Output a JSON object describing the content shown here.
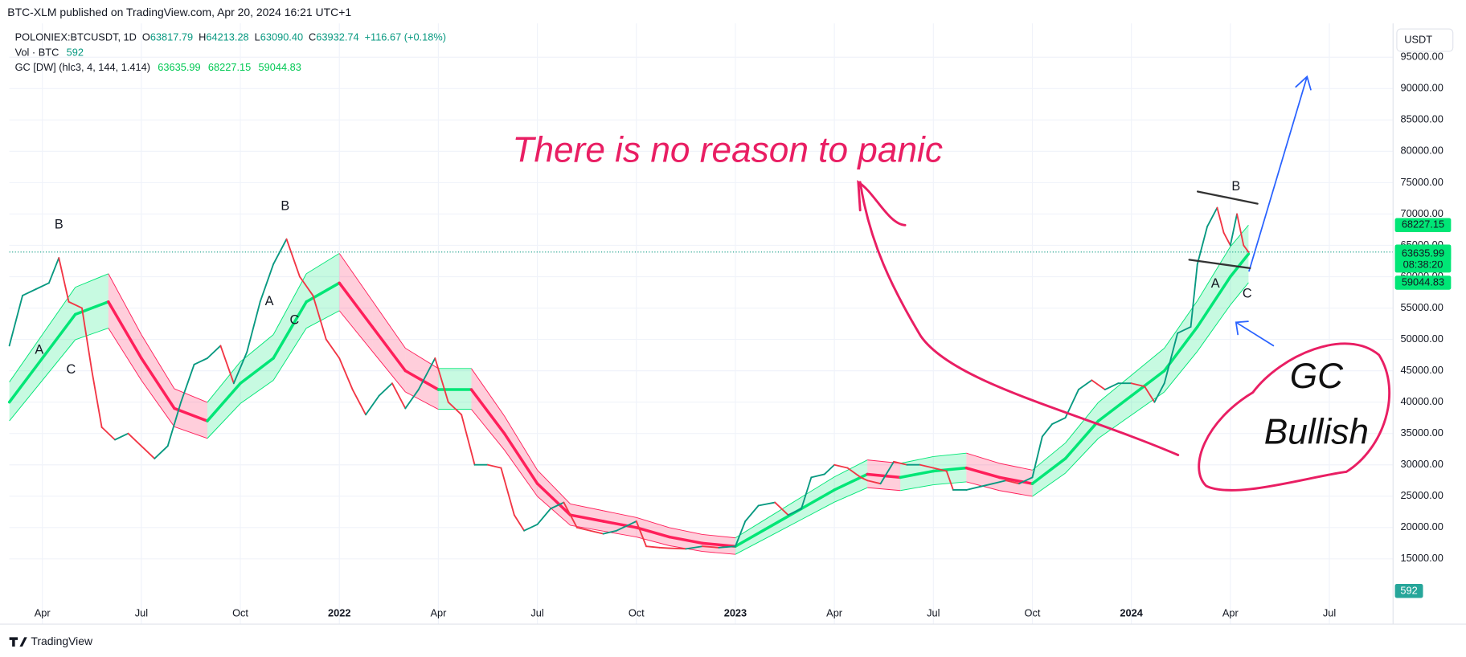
{
  "page": {
    "publisher": "BTC-XLM published on TradingView.com, Apr 20, 2024 16:21 UTC+1",
    "symbol": "POLONIEX:BTCUSDT, 1D",
    "ohlc": [
      {
        "key": "O",
        "value": "63817.79"
      },
      {
        "key": "H",
        "value": "64213.28"
      },
      {
        "key": "L",
        "value": "63090.40"
      },
      {
        "key": "C",
        "value": "63932.74"
      }
    ],
    "change": "+116.67 (+0.18%)",
    "vol_label": "Vol · BTC",
    "vol_value": 592,
    "gc_label": "GC [DW] (hlc3, 4, 144, 1.414)",
    "currency": "USDT",
    "countdown": "08:38:20",
    "brand": "TradingView"
  },
  "chart_data": {
    "type": "line",
    "annotations": [
      "There is no reason to panic",
      "GC",
      "Bullish"
    ],
    "wave_labels": [
      "B",
      "A",
      "C",
      "B",
      "A",
      "C",
      "B",
      "A",
      "C"
    ],
    "xlim": [
      2,
      43.93
    ],
    "xticks": [
      {
        "value": 3,
        "label": "Apr"
      },
      {
        "value": 6,
        "label": "Jul"
      },
      {
        "value": 9,
        "label": "Oct"
      },
      {
        "value": 12,
        "label": "2022"
      },
      {
        "value": 15,
        "label": "Apr"
      },
      {
        "value": 18,
        "label": "Jul"
      },
      {
        "value": 21,
        "label": "Oct"
      },
      {
        "value": 24,
        "label": "2023"
      },
      {
        "value": 27,
        "label": "Apr"
      },
      {
        "value": 30,
        "label": "Jul"
      },
      {
        "value": 33,
        "label": "Oct"
      },
      {
        "value": 36,
        "label": "2024"
      },
      {
        "value": 39,
        "label": "Apr"
      },
      {
        "value": 42,
        "label": "Jul"
      }
    ],
    "ylim": [
      4600,
      100400
    ],
    "yticks": [
      {
        "value": 15000,
        "label": "15000.00"
      },
      {
        "value": 20000,
        "label": "20000.00"
      },
      {
        "value": 25000,
        "label": "25000.00"
      },
      {
        "value": 30000,
        "label": "30000.00"
      },
      {
        "value": 35000,
        "label": "35000.00"
      },
      {
        "value": 40000,
        "label": "40000.00"
      },
      {
        "value": 45000,
        "label": "45000.00"
      },
      {
        "value": 50000,
        "label": "50000.00"
      },
      {
        "value": 55000,
        "label": "55000.00"
      },
      {
        "value": 60000,
        "label": "60000.00"
      },
      {
        "value": 65000,
        "label": "65000.00"
      },
      {
        "value": 70000,
        "label": "70000.00"
      },
      {
        "value": 75000,
        "label": "75000.00"
      },
      {
        "value": 80000,
        "label": "80000.00"
      },
      {
        "value": 85000,
        "label": "85000.00"
      },
      {
        "value": 90000,
        "label": "90000.00"
      },
      {
        "value": 95000,
        "label": "95000.00"
      }
    ],
    "grid": true,
    "series": [
      {
        "up_color": "#089981",
        "down_color": "#f23645",
        "x": [
          2.0,
          2.4,
          2.8,
          3.2,
          3.5,
          3.8,
          4.2,
          4.5,
          4.8,
          5.2,
          5.6,
          6.0,
          6.4,
          6.8,
          7.2,
          7.6,
          8.0,
          8.4,
          8.8,
          9.2,
          9.6,
          10.0,
          10.4,
          10.8,
          11.2,
          11.6,
          12.0,
          12.4,
          12.8,
          13.2,
          13.6,
          14.0,
          14.4,
          14.9,
          15.3,
          15.7,
          16.1,
          16.5,
          16.9,
          17.3,
          17.6,
          18.0,
          18.4,
          18.8,
          19.2,
          19.6,
          20.0,
          20.4,
          20.8,
          21.0,
          21.3,
          21.7,
          22.0,
          22.5,
          23.0,
          23.5,
          24.0,
          24.3,
          24.7,
          25.2,
          25.6,
          26.0,
          26.3,
          26.7,
          27.0,
          27.4,
          27.8,
          28.0,
          28.4,
          28.8,
          29.2,
          29.6,
          30.0,
          30.4,
          30.6,
          31.0,
          31.4,
          31.8,
          32.2,
          32.6,
          33.0,
          33.3,
          33.6,
          34.0,
          34.4,
          34.8,
          35.2,
          35.6,
          36.0,
          36.4,
          36.7,
          37.0,
          37.4,
          37.8,
          38.0,
          38.3,
          38.6,
          38.8,
          39.0,
          39.2,
          39.4,
          39.55
        ],
        "values": [
          49000,
          57000,
          58000,
          59000,
          63000,
          56000,
          55000,
          45000,
          36000,
          34000,
          35000,
          33000,
          31000,
          33000,
          40000,
          46000,
          47000,
          49000,
          43000,
          48000,
          56000,
          62000,
          66000,
          60000,
          57000,
          50000,
          47000,
          42000,
          38000,
          41000,
          43000,
          39000,
          42000,
          47000,
          40000,
          38000,
          30000,
          30000,
          29500,
          22000,
          19500,
          20500,
          23000,
          24000,
          20000,
          19500,
          19000,
          19500,
          20500,
          21000,
          17000,
          16800,
          16700,
          16600,
          17000,
          16800,
          17000,
          21000,
          23500,
          24000,
          22000,
          23000,
          28000,
          28500,
          30000,
          29500,
          28000,
          27500,
          27000,
          30500,
          30000,
          30000,
          29500,
          29000,
          26000,
          26000,
          26500,
          27000,
          27500,
          27000,
          28000,
          34500,
          36500,
          37500,
          42000,
          43500,
          42000,
          43000,
          43000,
          42500,
          40000,
          43000,
          51000,
          52000,
          62000,
          68000,
          71000,
          67000,
          65000,
          70000,
          65000,
          63932.74
        ]
      },
      {
        "up_color": "#00e676",
        "down_color": "#ff1f5a",
        "x": [
          2,
          3,
          4,
          5,
          6,
          7,
          8,
          9,
          10,
          11,
          12,
          13,
          14,
          15,
          16,
          17,
          18,
          19,
          20,
          21,
          22,
          23,
          24,
          25,
          26,
          27,
          28,
          29,
          30,
          31,
          32,
          33,
          34,
          35,
          36,
          37,
          38,
          39,
          39.55
        ],
        "values": [
          40000,
          47000,
          54000,
          56000,
          47000,
          39000,
          37000,
          43000,
          47000,
          56000,
          59000,
          52000,
          45000,
          42000,
          42000,
          35000,
          27000,
          22000,
          21000,
          20000,
          18500,
          17500,
          17000,
          20000,
          23000,
          26000,
          28500,
          28000,
          29000,
          29500,
          28000,
          27000,
          31000,
          37000,
          41000,
          45000,
          52000,
          60000,
          63635.99
        ]
      },
      {
        "up_color": "#00e676",
        "down_color": "#ff1f5a",
        "x": [
          2,
          3,
          4,
          5,
          6,
          7,
          8,
          9,
          10,
          11,
          12,
          13,
          14,
          15,
          16,
          17,
          18,
          19,
          20,
          21,
          22,
          23,
          24,
          25,
          26,
          27,
          28,
          29,
          30,
          31,
          32,
          33,
          34,
          35,
          36,
          37,
          38,
          39,
          39.55
        ],
        "values": [
          43200,
          50760,
          58320,
          60480,
          50760,
          42120,
          39960,
          46440,
          50760,
          60480,
          63720,
          56160,
          48600,
          45360,
          45360,
          37800,
          29160,
          23760,
          22680,
          21600,
          19980,
          18900,
          18360,
          21600,
          24840,
          28080,
          30780,
          30240,
          31320,
          31860,
          30240,
          29160,
          33480,
          39960,
          44280,
          48600,
          56160,
          64800,
          68227.15
        ]
      },
      {
        "up_color": "#00e676",
        "down_color": "#ff1f5a",
        "x": [
          2,
          3,
          4,
          5,
          6,
          7,
          8,
          9,
          10,
          11,
          12,
          13,
          14,
          15,
          16,
          17,
          18,
          19,
          20,
          21,
          22,
          23,
          24,
          25,
          26,
          27,
          28,
          29,
          30,
          31,
          32,
          33,
          34,
          35,
          36,
          37,
          38,
          39,
          39.55
        ],
        "values": [
          37000,
          43475,
          49950,
          51800,
          43475,
          36075,
          34225,
          39775,
          43475,
          51800,
          54575,
          48100,
          41625,
          38850,
          38850,
          32375,
          24975,
          20350,
          19425,
          18500,
          17112,
          16188,
          15725,
          18500,
          21275,
          24050,
          26362,
          25900,
          26825,
          27288,
          25900,
          24975,
          28675,
          34225,
          37925,
          41625,
          48100,
          55500,
          59044.83
        ]
      }
    ]
  }
}
